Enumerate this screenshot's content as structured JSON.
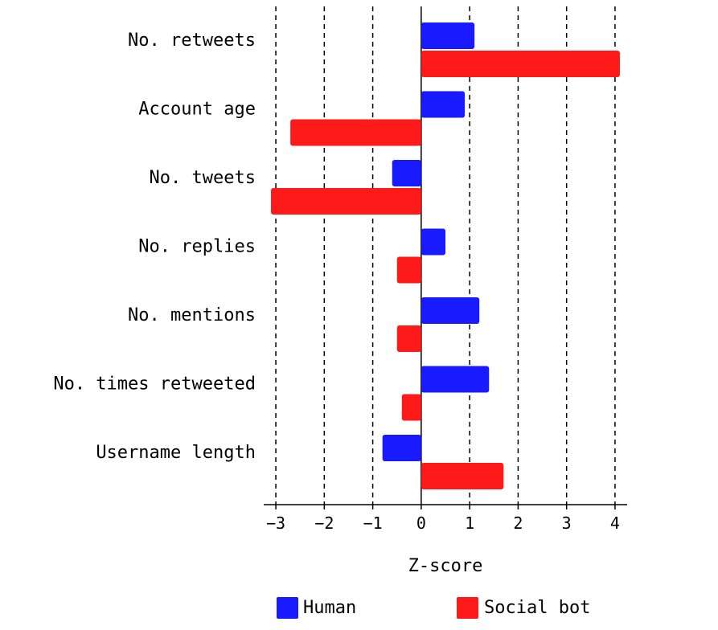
{
  "chart_data": {
    "type": "bar",
    "orientation": "horizontal",
    "categories": [
      "No. retweets",
      "Account age",
      "No. tweets",
      "No. replies",
      "No. mentions",
      "No. times retweeted",
      "Username length"
    ],
    "series": [
      {
        "name": "Human",
        "color": "#1a1aff",
        "values": [
          1.1,
          0.9,
          -0.6,
          0.5,
          1.2,
          1.4,
          -0.8
        ]
      },
      {
        "name": "Social bot",
        "color": "#ff1a1a",
        "values": [
          4.1,
          -2.7,
          -3.1,
          -0.5,
          -0.5,
          -0.4,
          1.7
        ]
      }
    ],
    "xlabel": "Z-score",
    "xlim": [
      -3.25,
      4.25
    ],
    "xticks": [
      -3,
      -2,
      -1,
      0,
      1,
      2,
      3,
      4
    ],
    "xtick_labels": [
      "−3",
      "−2",
      "−1",
      "0",
      "1",
      "2",
      "3",
      "4"
    ],
    "grid": "vertical-dashed",
    "legend_position": "bottom"
  }
}
